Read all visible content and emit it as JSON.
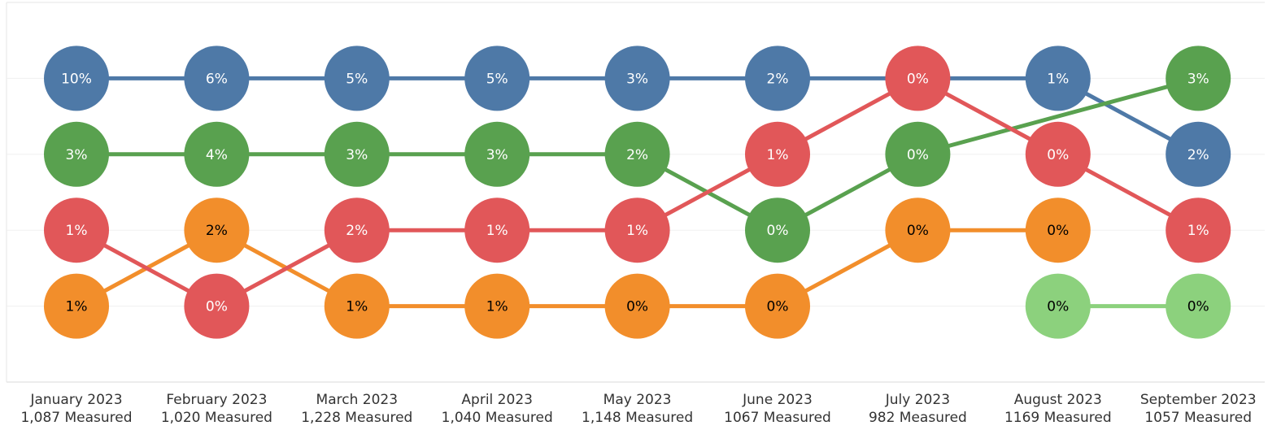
{
  "chart_data": {
    "type": "bump",
    "categories": [
      "January 2023",
      "February 2023",
      "March 2023",
      "April 2023",
      "May 2023",
      "June 2023",
      "July 2023",
      "August 2023",
      "September 2023"
    ],
    "measured": [
      "1,087 Measured",
      "1,020 Measured",
      "1,228 Measured",
      "1,040 Measured",
      "1,148 Measured",
      "1067 Measured",
      "982 Measured",
      "1169 Measured",
      "1057 Measured"
    ],
    "ylim": [
      0,
      5
    ],
    "y_reversed": true,
    "yticks": [
      1,
      2,
      3,
      4
    ],
    "grid": true,
    "series": [
      {
        "color": "#4e79a7",
        "label_color": "#ffffff",
        "ranks": [
          1,
          1,
          1,
          1,
          1,
          1,
          1,
          1,
          2
        ],
        "values": [
          10,
          6,
          5,
          5,
          3,
          2,
          null,
          1,
          2
        ],
        "value_labels": [
          "10%",
          "6%",
          "5%",
          "5%",
          "3%",
          "2%",
          null,
          "1%",
          "2%"
        ]
      },
      {
        "color": "#59a14f",
        "label_color": "#ffffff",
        "ranks": [
          2,
          2,
          2,
          2,
          2,
          3,
          2,
          null,
          1
        ],
        "values": [
          3,
          4,
          3,
          3,
          2,
          0,
          0,
          null,
          3
        ],
        "value_labels": [
          "3%",
          "4%",
          "3%",
          "3%",
          "2%",
          "0%",
          "0%",
          null,
          "3%"
        ]
      },
      {
        "color": "#f28e2b",
        "label_color": "#000000",
        "ranks": [
          4,
          3,
          4,
          4,
          4,
          4,
          3,
          3,
          null
        ],
        "values": [
          1,
          2,
          1,
          1,
          0,
          0,
          0,
          0,
          null
        ],
        "value_labels": [
          "1%",
          "2%",
          "1%",
          "1%",
          "0%",
          "0%",
          "0%",
          "0%",
          null
        ]
      },
      {
        "color": "#e15759",
        "label_color": "#ffffff",
        "ranks": [
          3,
          4,
          3,
          3,
          3,
          2,
          1,
          2,
          3
        ],
        "values": [
          1,
          0,
          2,
          1,
          1,
          1,
          0,
          0,
          1
        ],
        "value_labels": [
          "1%",
          "0%",
          "2%",
          "1%",
          "1%",
          "1%",
          "0%",
          "0%",
          "1%"
        ]
      },
      {
        "color": "#8cd17d",
        "label_color": "#000000",
        "ranks": [
          null,
          null,
          null,
          null,
          null,
          null,
          null,
          4,
          4
        ],
        "values": [
          null,
          null,
          null,
          null,
          null,
          null,
          null,
          0,
          0
        ],
        "value_labels": [
          null,
          null,
          null,
          null,
          null,
          null,
          null,
          "0%",
          "0%"
        ]
      }
    ]
  }
}
